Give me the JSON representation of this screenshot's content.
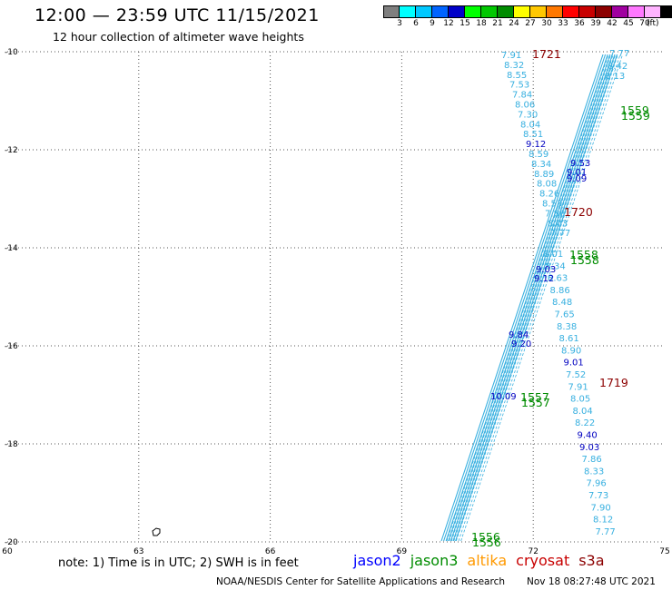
{
  "header": {
    "title": "12:00 — 23:59 UTC 11/15/2021",
    "subtitle": "12 hour collection of altimeter wave heights"
  },
  "legend": {
    "unit": "(ft)",
    "swatches": [
      {
        "color": "#7f7f7f",
        "label": ""
      },
      {
        "color": "#00ffff",
        "label": "3"
      },
      {
        "color": "#00c8ff",
        "label": "6"
      },
      {
        "color": "#0064ff",
        "label": "9"
      },
      {
        "color": "#0000c8",
        "label": "12"
      },
      {
        "color": "#00ff00",
        "label": "15"
      },
      {
        "color": "#00c800",
        "label": "18"
      },
      {
        "color": "#008c00",
        "label": "21"
      },
      {
        "color": "#ffff00",
        "label": "24"
      },
      {
        "color": "#ffc800",
        "label": "27"
      },
      {
        "color": "#ff7800",
        "label": "30"
      },
      {
        "color": "#ff0000",
        "label": "33"
      },
      {
        "color": "#c80000",
        "label": "36"
      },
      {
        "color": "#8c0000",
        "label": "39"
      },
      {
        "color": "#a000a0",
        "label": "42"
      },
      {
        "color": "#ff78ff",
        "label": "45"
      },
      {
        "color": "#ffb4ff",
        "label": "70"
      },
      {
        "color": "#000000",
        "label": ""
      }
    ]
  },
  "axes": {
    "lon_ticks": [
      "60",
      "63",
      "66",
      "69",
      "72",
      "75"
    ],
    "lat_ticks": [
      "-10",
      "-12",
      "-14",
      "-16",
      "-18",
      "-20"
    ]
  },
  "colors": {
    "swh_light": "#38b0e0",
    "swh_dark": "#0000c0",
    "jason3": "#008c00",
    "cryosat": "#8c0000"
  },
  "tracks": {
    "left_column": [
      "7.91",
      "8.32",
      "8.55",
      "7.53",
      "7.84",
      "8.06",
      "7.30",
      "8.04",
      "8.51",
      "9.12",
      "8.59",
      "8.34",
      "8.89",
      "8.08",
      "8.26",
      "8.53",
      "7.86",
      "8.03",
      "7.77"
    ],
    "right_column": [
      "8.01",
      "8.34",
      "8.63",
      "8.86",
      "8.48",
      "7.65",
      "8.38",
      "8.61",
      "8.90",
      "9.01",
      "7.52",
      "7.91",
      "8.05",
      "8.04",
      "8.22",
      "9.40",
      "9.03",
      "7.86",
      "8.33",
      "7.96",
      "7.73",
      "7.90",
      "8.12",
      "7.77"
    ],
    "right_dark": [
      "9.01",
      "9.40",
      "9.03"
    ],
    "left_dark": [
      "9.12"
    ],
    "mid_dark": [
      "9.53",
      "9.01",
      "9.09",
      "9.03",
      "9.12",
      "10.09",
      "9.84",
      "9.20"
    ],
    "time_labels": [
      {
        "text": "1721",
        "sat": "cryosat"
      },
      {
        "text": "1720",
        "sat": "cryosat"
      },
      {
        "text": "1719",
        "sat": "cryosat"
      },
      {
        "text": "1559",
        "sat": "jason3"
      },
      {
        "text": "1558",
        "sat": "jason3"
      },
      {
        "text": "1557",
        "sat": "jason3"
      },
      {
        "text": "1556",
        "sat": "jason3"
      }
    ],
    "upper_right_labels": [
      "7.77",
      "8.42",
      "8.13"
    ]
  },
  "footer": {
    "note": "note:  1) Time is in UTC;  2) SWH is in feet",
    "satellites": [
      {
        "name": "jason2",
        "color": "#0000ff"
      },
      {
        "name": "jason3",
        "color": "#008c00"
      },
      {
        "name": "altika",
        "color": "#ff9900"
      },
      {
        "name": "cryosat",
        "color": "#c80000"
      },
      {
        "name": "s3a",
        "color": "#8c0000"
      }
    ],
    "credit": "NOAA/NESDIS Center for Satellite Applications and Research",
    "timestamp": "Nov 18 08:27:48 UTC 2021"
  }
}
